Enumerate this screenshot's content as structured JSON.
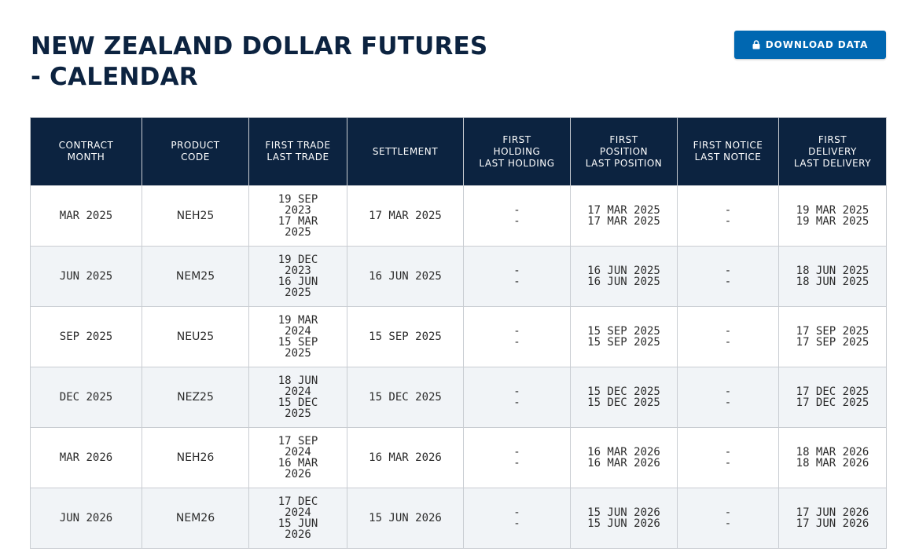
{
  "page": {
    "title": "NEW ZEALAND DOLLAR FUTURES - CALENDAR",
    "download_label": "DOWNLOAD DATA"
  },
  "table": {
    "headers": [
      [
        "CONTRACT",
        "MONTH"
      ],
      [
        "PRODUCT",
        "CODE"
      ],
      [
        "FIRST TRADE",
        "LAST TRADE"
      ],
      [
        "SETTLEMENT"
      ],
      [
        "FIRST",
        "HOLDING",
        "LAST HOLDING"
      ],
      [
        "FIRST",
        "POSITION",
        "LAST POSITION"
      ],
      [
        "FIRST NOTICE",
        "LAST NOTICE"
      ],
      [
        "FIRST",
        "DELIVERY",
        "LAST DELIVERY"
      ]
    ],
    "rows": [
      {
        "contract_month": "MAR 2025",
        "product_code": "NEH25",
        "first_trade": "19 SEP 2023",
        "last_trade": "17 MAR 2025",
        "settlement": "17 MAR 2025",
        "first_holding": "-",
        "last_holding": "-",
        "first_position": "17 MAR 2025",
        "last_position": "17 MAR 2025",
        "first_notice": "-",
        "last_notice": "-",
        "first_delivery": "19 MAR 2025",
        "last_delivery": "19 MAR 2025"
      },
      {
        "contract_month": "JUN 2025",
        "product_code": "NEM25",
        "first_trade": "19 DEC 2023",
        "last_trade": "16 JUN 2025",
        "settlement": "16 JUN 2025",
        "first_holding": "-",
        "last_holding": "-",
        "first_position": "16 JUN 2025",
        "last_position": "16 JUN 2025",
        "first_notice": "-",
        "last_notice": "-",
        "first_delivery": "18 JUN 2025",
        "last_delivery": "18 JUN 2025"
      },
      {
        "contract_month": "SEP 2025",
        "product_code": "NEU25",
        "first_trade": "19 MAR 2024",
        "last_trade": "15 SEP 2025",
        "settlement": "15 SEP 2025",
        "first_holding": "-",
        "last_holding": "-",
        "first_position": "15 SEP 2025",
        "last_position": "15 SEP 2025",
        "first_notice": "-",
        "last_notice": "-",
        "first_delivery": "17 SEP 2025",
        "last_delivery": "17 SEP 2025"
      },
      {
        "contract_month": "DEC 2025",
        "product_code": "NEZ25",
        "first_trade": "18 JUN 2024",
        "last_trade": "15 DEC 2025",
        "settlement": "15 DEC 2025",
        "first_holding": "-",
        "last_holding": "-",
        "first_position": "15 DEC 2025",
        "last_position": "15 DEC 2025",
        "first_notice": "-",
        "last_notice": "-",
        "first_delivery": "17 DEC 2025",
        "last_delivery": "17 DEC 2025"
      },
      {
        "contract_month": "MAR 2026",
        "product_code": "NEH26",
        "first_trade": "17 SEP 2024",
        "last_trade": "16 MAR 2026",
        "settlement": "16 MAR 2026",
        "first_holding": "-",
        "last_holding": "-",
        "first_position": "16 MAR 2026",
        "last_position": "16 MAR 2026",
        "first_notice": "-",
        "last_notice": "-",
        "first_delivery": "18 MAR 2026",
        "last_delivery": "18 MAR 2026"
      },
      {
        "contract_month": "JUN 2026",
        "product_code": "NEM26",
        "first_trade": "17 DEC 2024",
        "last_trade": "15 JUN 2026",
        "settlement": "15 JUN 2026",
        "first_holding": "-",
        "last_holding": "-",
        "first_position": "15 JUN 2026",
        "last_position": "15 JUN 2026",
        "first_notice": "-",
        "last_notice": "-",
        "first_delivery": "17 JUN 2026",
        "last_delivery": "17 JUN 2026"
      }
    ]
  },
  "colors": {
    "header_bg": "#0c2340",
    "button_bg": "#0067b1",
    "alt_row_bg": "#f1f4f7",
    "border": "#c9cdd2"
  },
  "icons": {
    "download_button": "lock-icon"
  }
}
